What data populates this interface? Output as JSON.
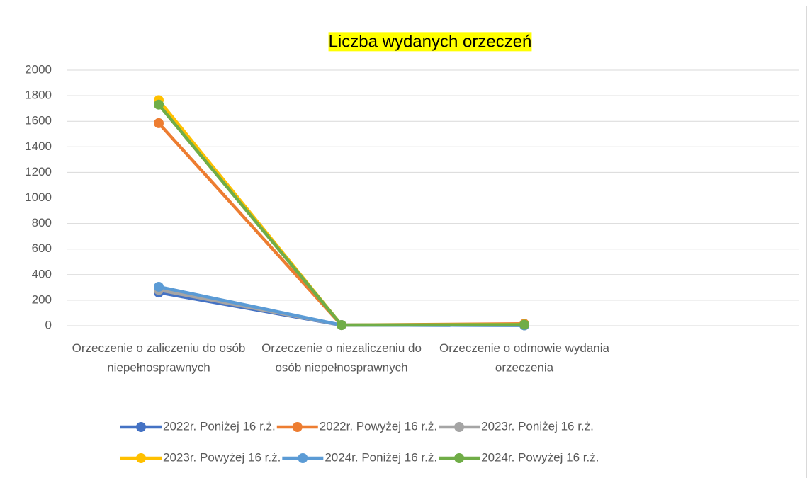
{
  "chart_data": {
    "type": "line",
    "title": "Liczba wydanych orzeczeń",
    "categories": [
      "Orzeczenie o zaliczeniu do osób niepełnosprawnych",
      "Orzeczenie o niezaliczeniu do osób niepełnosprawnych",
      "Orzeczenie o odmowie wydania orzeczenia",
      null
    ],
    "series": [
      {
        "name": "2022r. Poniżej 16 r.ż.",
        "color": "#4472c4",
        "values": [
          260,
          5,
          3,
          null
        ]
      },
      {
        "name": "2022r. Powyżej 16 r.ż.",
        "color": "#ed7d31",
        "values": [
          1585,
          5,
          15,
          null
        ]
      },
      {
        "name": "2023r. Poniżej 16 r.ż.",
        "color": "#a5a5a5",
        "values": [
          280,
          5,
          3,
          null
        ]
      },
      {
        "name": "2023r. Powyżej 16 r.ż.",
        "color": "#ffc000",
        "values": [
          1765,
          5,
          10,
          null
        ]
      },
      {
        "name": "2024r. Poniżej 16 r.ż.",
        "color": "#5b9bd5",
        "values": [
          305,
          5,
          3,
          null
        ]
      },
      {
        "name": "2024r. Powyżej 16 r.ż.",
        "color": "#70ad47",
        "values": [
          1730,
          5,
          8,
          null
        ]
      }
    ],
    "ylim": [
      0,
      2000
    ],
    "yticks": [
      0,
      200,
      400,
      600,
      800,
      1000,
      1200,
      1400,
      1600,
      1800,
      2000
    ],
    "grid": true,
    "legend": "bottom",
    "title_highlight": "#ffff00"
  }
}
